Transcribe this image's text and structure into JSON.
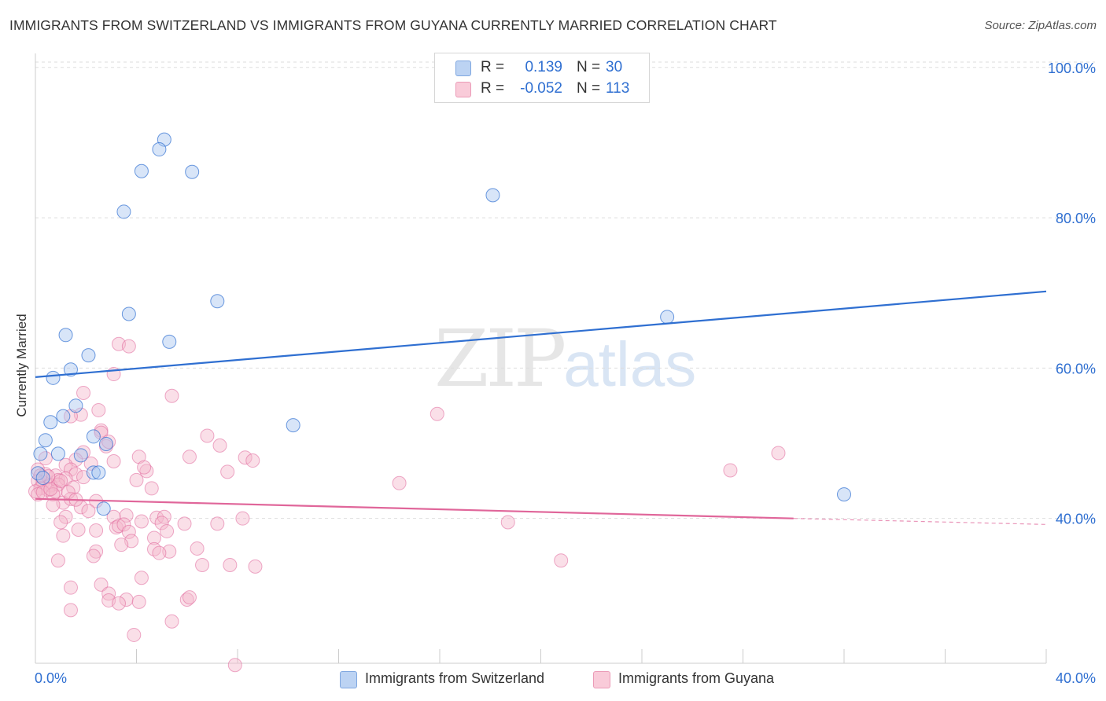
{
  "title": "IMMIGRANTS FROM SWITZERLAND VS IMMIGRANTS FROM GUYANA CURRENTLY MARRIED CORRELATION CHART",
  "source": "Source: ZipAtlas.com",
  "watermark": {
    "zip": "ZIP",
    "atlas": "atlas"
  },
  "colors": {
    "switzerland": "#2f6fd1",
    "switzerland_fill": "#a9c6ef",
    "guyana": "#e0669a",
    "guyana_fill": "#f4b8cc",
    "value_text": "#2f6fd1",
    "grid": "#dddddd"
  },
  "legend": {
    "rows": [
      {
        "r_label": "R =",
        "r_value": "0.139",
        "n_label": "N =",
        "n_value": "30"
      },
      {
        "r_label": "R =",
        "r_value": "-0.052",
        "n_label": "N =",
        "n_value": "113"
      }
    ]
  },
  "bottom_legend": {
    "switzerland": "Immigrants from Switzerland",
    "guyana": "Immigrants from Guyana"
  },
  "chart_data": {
    "type": "scatter",
    "title": "IMMIGRANTS FROM SWITZERLAND VS IMMIGRANTS FROM GUYANA CURRENTLY MARRIED CORRELATION CHART",
    "xlabel": "",
    "ylabel": "Currently Married",
    "xlim": [
      0,
      40
    ],
    "ylim": [
      20,
      102
    ],
    "x_tick_labels": [
      "0.0%",
      "40.0%"
    ],
    "y_ticks": [
      40,
      60,
      80,
      100
    ],
    "y_tick_labels": [
      "40.0%",
      "60.0%",
      "80.0%",
      "100.0%"
    ],
    "grid": true,
    "legend_position": "top-center",
    "series": [
      {
        "name": "Immigrants from Switzerland",
        "r": 0.139,
        "n": 30,
        "trend": [
          [
            0,
            58.8
          ],
          [
            40,
            70.2
          ]
        ],
        "points": [
          [
            5.1,
            90.4
          ],
          [
            4.9,
            89.1
          ],
          [
            4.2,
            86.2
          ],
          [
            6.2,
            86.1
          ],
          [
            3.5,
            80.8
          ],
          [
            18.1,
            83.0
          ],
          [
            7.2,
            68.9
          ],
          [
            3.7,
            67.2
          ],
          [
            25.0,
            66.8
          ],
          [
            1.2,
            64.4
          ],
          [
            5.3,
            63.5
          ],
          [
            2.1,
            61.7
          ],
          [
            1.4,
            59.8
          ],
          [
            0.7,
            58.7
          ],
          [
            1.6,
            55.0
          ],
          [
            1.1,
            53.6
          ],
          [
            0.6,
            52.8
          ],
          [
            10.2,
            52.4
          ],
          [
            0.4,
            50.4
          ],
          [
            2.3,
            50.9
          ],
          [
            2.8,
            49.9
          ],
          [
            0.2,
            48.6
          ],
          [
            0.9,
            48.6
          ],
          [
            1.8,
            48.4
          ],
          [
            0.1,
            46.0
          ],
          [
            0.3,
            45.4
          ],
          [
            2.3,
            46.1
          ],
          [
            2.5,
            46.1
          ],
          [
            2.7,
            41.3
          ],
          [
            32.0,
            43.2
          ]
        ]
      },
      {
        "name": "Immigrants from Guyana",
        "r": -0.052,
        "n": 113,
        "trend_solid": [
          [
            0,
            42.6
          ],
          [
            30,
            40.0
          ]
        ],
        "trend_dashed": [
          [
            30,
            40.0
          ],
          [
            40,
            39.2
          ]
        ],
        "points": [
          [
            3.3,
            63.2
          ],
          [
            3.7,
            62.9
          ],
          [
            3.1,
            59.2
          ],
          [
            1.9,
            56.7
          ],
          [
            5.4,
            56.3
          ],
          [
            15.9,
            53.9
          ],
          [
            2.5,
            54.4
          ],
          [
            1.8,
            53.8
          ],
          [
            1.4,
            53.6
          ],
          [
            6.8,
            51.0
          ],
          [
            2.6,
            51.7
          ],
          [
            2.6,
            51.4
          ],
          [
            2.8,
            49.6
          ],
          [
            7.3,
            49.7
          ],
          [
            1.9,
            48.8
          ],
          [
            2.9,
            50.2
          ],
          [
            4.1,
            48.2
          ],
          [
            6.1,
            48.2
          ],
          [
            8.3,
            48.1
          ],
          [
            8.6,
            47.7
          ],
          [
            29.4,
            48.7
          ],
          [
            0.4,
            48.0
          ],
          [
            1.6,
            47.8
          ],
          [
            2.2,
            47.3
          ],
          [
            3.1,
            47.6
          ],
          [
            1.2,
            47.1
          ],
          [
            1.4,
            46.5
          ],
          [
            0.1,
            46.5
          ],
          [
            0.4,
            45.9
          ],
          [
            1.6,
            45.9
          ],
          [
            1.9,
            45.5
          ],
          [
            7.6,
            46.2
          ],
          [
            4.4,
            46.3
          ],
          [
            27.5,
            46.4
          ],
          [
            4.3,
            46.8
          ],
          [
            0.8,
            45.7
          ],
          [
            0.9,
            45.1
          ],
          [
            1.2,
            45.3
          ],
          [
            0.1,
            45.0
          ],
          [
            0.3,
            44.8
          ],
          [
            0.6,
            44.4
          ],
          [
            0.9,
            44.5
          ],
          [
            4.0,
            45.1
          ],
          [
            14.4,
            44.7
          ],
          [
            0.2,
            44.0
          ],
          [
            0.5,
            43.8
          ],
          [
            0.8,
            43.6
          ],
          [
            1.5,
            44.1
          ],
          [
            0.0,
            43.6
          ],
          [
            0.1,
            43.2
          ],
          [
            0.3,
            43.5
          ],
          [
            0.7,
            43.2
          ],
          [
            2.4,
            42.3
          ],
          [
            1.1,
            42.1
          ],
          [
            0.7,
            41.8
          ],
          [
            1.4,
            42.6
          ],
          [
            1.8,
            41.5
          ],
          [
            2.1,
            41.0
          ],
          [
            1.2,
            40.2
          ],
          [
            3.6,
            40.4
          ],
          [
            3.1,
            40.2
          ],
          [
            4.8,
            40.1
          ],
          [
            5.1,
            40.2
          ],
          [
            8.2,
            40.0
          ],
          [
            18.7,
            39.5
          ],
          [
            3.2,
            38.8
          ],
          [
            3.3,
            39.0
          ],
          [
            3.5,
            39.2
          ],
          [
            4.2,
            39.6
          ],
          [
            5.0,
            39.4
          ],
          [
            5.2,
            38.3
          ],
          [
            1.0,
            39.5
          ],
          [
            1.7,
            38.5
          ],
          [
            2.4,
            38.4
          ],
          [
            3.7,
            38.2
          ],
          [
            5.9,
            39.3
          ],
          [
            7.2,
            39.3
          ],
          [
            1.1,
            37.7
          ],
          [
            3.8,
            37.0
          ],
          [
            4.7,
            37.4
          ],
          [
            3.4,
            36.5
          ],
          [
            6.4,
            36.0
          ],
          [
            2.4,
            35.6
          ],
          [
            2.3,
            35.0
          ],
          [
            4.7,
            35.9
          ],
          [
            5.3,
            35.6
          ],
          [
            4.9,
            35.4
          ],
          [
            0.9,
            34.4
          ],
          [
            6.6,
            33.8
          ],
          [
            7.7,
            33.8
          ],
          [
            8.7,
            33.6
          ],
          [
            20.8,
            34.4
          ],
          [
            4.2,
            32.1
          ],
          [
            2.6,
            31.2
          ],
          [
            1.4,
            30.8
          ],
          [
            2.9,
            30.0
          ],
          [
            3.6,
            29.2
          ],
          [
            6.0,
            29.2
          ],
          [
            2.9,
            29.1
          ],
          [
            3.3,
            28.7
          ],
          [
            4.1,
            28.9
          ],
          [
            6.1,
            29.5
          ],
          [
            1.4,
            27.8
          ],
          [
            5.4,
            26.3
          ],
          [
            3.9,
            24.5
          ],
          [
            7.9,
            20.5
          ],
          [
            1.3,
            43.5
          ],
          [
            1.0,
            45.0
          ],
          [
            1.6,
            42.5
          ],
          [
            0.5,
            45.6
          ],
          [
            0.2,
            45.7
          ],
          [
            0.6,
            43.9
          ],
          [
            4.6,
            44.0
          ]
        ]
      }
    ]
  }
}
